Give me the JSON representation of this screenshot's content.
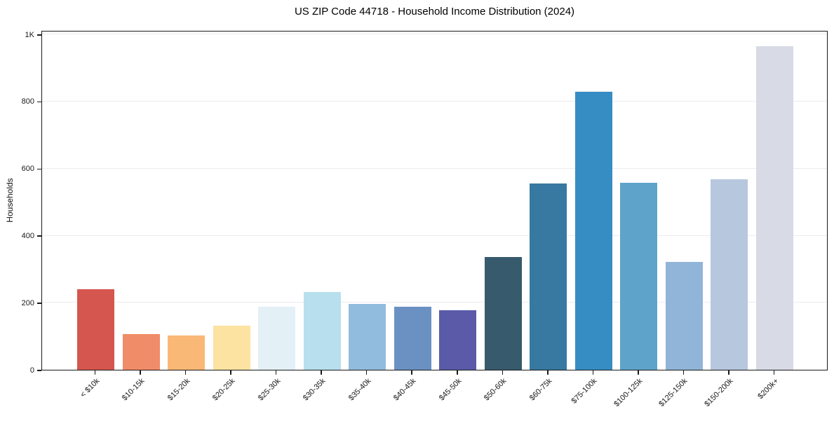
{
  "figure": {
    "background": "#ffffff",
    "spine_color": "#1a1a1a",
    "gridline_color": "#ebebf2",
    "text_color": "#1a1a1a"
  },
  "chart_data": {
    "type": "bar",
    "title": "US ZIP Code 44718 - Household Income Distribution (2024)",
    "xlabel": "",
    "ylabel": "Households",
    "categories": [
      "< $10k",
      "$10-15k",
      "$15-20k",
      "$20-25k",
      "$25-30k",
      "$30-35k",
      "$35-40k",
      "$40-45k",
      "$45-50k",
      "$50-60k",
      "$60-75k",
      "$75-100k",
      "$100-125k",
      "$125-150k",
      "$150-200k",
      "$200k+"
    ],
    "values": [
      240,
      106,
      102,
      131,
      187,
      232,
      196,
      187,
      177,
      336,
      556,
      829,
      558,
      321,
      568,
      964
    ],
    "bar_colors": [
      "#d5564f",
      "#f18c68",
      "#fab877",
      "#fde3a1",
      "#e3f0f6",
      "#b8dfed",
      "#92bcdd",
      "#6b91c3",
      "#5a5aa8",
      "#375a6d",
      "#3779a1",
      "#368dc3",
      "#5ea4ca",
      "#90b5d8",
      "#b7c7de",
      "#d8dae6"
    ],
    "ylim": [
      0,
      1013
    ],
    "yticks": [
      {
        "value": 0,
        "label": "0"
      },
      {
        "value": 200,
        "label": "200"
      },
      {
        "value": 400,
        "label": "400"
      },
      {
        "value": 600,
        "label": "600"
      },
      {
        "value": 800,
        "label": "800"
      },
      {
        "value": 1000,
        "label": "1K"
      }
    ],
    "grid": "horizontal",
    "legend": "none"
  }
}
